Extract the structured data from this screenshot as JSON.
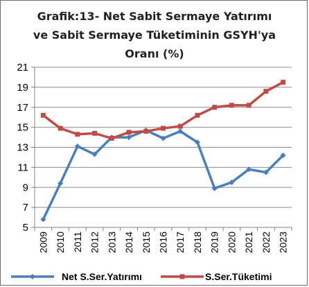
{
  "chart_data": {
    "type": "line",
    "title_lines": [
      "Grafik:13- Net Sabit Sermaye Yatırımı",
      "ve Sabit Sermaye Tüketiminin GSYH'ya",
      "Oranı (%)"
    ],
    "categories": [
      "2009",
      "2010",
      "2011",
      "2012",
      "2013",
      "2014",
      "2015",
      "2016",
      "2017",
      "2018",
      "2019",
      "2020",
      "2021",
      "2022",
      "2023"
    ],
    "ylim": [
      5,
      21
    ],
    "yticks": [
      5,
      7,
      9,
      11,
      13,
      15,
      17,
      19,
      21
    ],
    "grid": "horizontal",
    "legend": "bottom",
    "series": [
      {
        "name": "Net S.Ser.Yatırımı",
        "color": "#4a7ebb",
        "marker": "diamond",
        "values": [
          5.8,
          9.4,
          13.1,
          12.3,
          14.0,
          14.0,
          14.7,
          13.9,
          14.6,
          13.5,
          8.9,
          9.5,
          10.8,
          10.5,
          12.2
        ]
      },
      {
        "name": "S.Ser.Tüketimi",
        "color": "#be4b48",
        "marker": "square",
        "values": [
          16.2,
          14.9,
          14.3,
          14.4,
          13.9,
          14.5,
          14.6,
          14.9,
          15.1,
          16.2,
          17.0,
          17.2,
          17.2,
          18.6,
          19.5
        ]
      }
    ]
  }
}
